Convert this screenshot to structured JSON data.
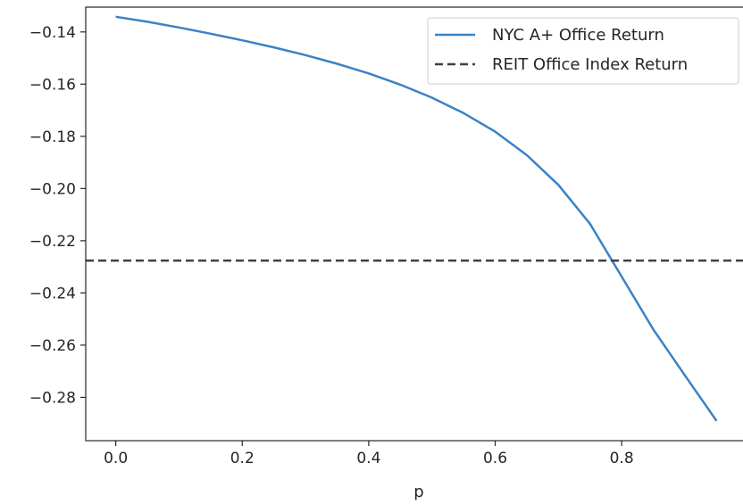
{
  "chart_data": {
    "type": "line",
    "title": "",
    "xlabel": "p",
    "ylabel": "",
    "xlim": [
      -0.0475,
      0.9975
    ],
    "ylim": [
      -0.2966,
      -0.1305
    ],
    "xticks": [
      0.0,
      0.2,
      0.4,
      0.6,
      0.8
    ],
    "xtick_labels": [
      "0.0",
      "0.2",
      "0.4",
      "0.6",
      "0.8"
    ],
    "yticks": [
      -0.14,
      -0.16,
      -0.18,
      -0.2,
      -0.22,
      -0.24,
      -0.26,
      -0.28
    ],
    "ytick_labels": [
      "−0.14",
      "−0.16",
      "−0.18",
      "−0.20",
      "−0.22",
      "−0.24",
      "−0.26",
      "−0.28"
    ],
    "grid": false,
    "legend_position": "top-right",
    "series": [
      {
        "name": "NYC A+ Office Return",
        "style": "solid",
        "color": "#3b82c4",
        "x": [
          0.0,
          0.05,
          0.1,
          0.15,
          0.2,
          0.25,
          0.3,
          0.35,
          0.4,
          0.45,
          0.5,
          0.55,
          0.6,
          0.65,
          0.7,
          0.75,
          0.8,
          0.85,
          0.9,
          0.95
        ],
        "y": [
          -0.1342,
          -0.1361,
          -0.1383,
          -0.1407,
          -0.1432,
          -0.1459,
          -0.1489,
          -0.1522,
          -0.1559,
          -0.1602,
          -0.1652,
          -0.1711,
          -0.1782,
          -0.1872,
          -0.1986,
          -0.2135,
          -0.2337,
          -0.254,
          -0.2716,
          -0.289
        ]
      },
      {
        "name": "REIT Office Index Return",
        "style": "dashed",
        "color": "#404040",
        "x": [
          -0.0475,
          0.9975
        ],
        "y": [
          -0.2276,
          -0.2276
        ]
      }
    ]
  }
}
